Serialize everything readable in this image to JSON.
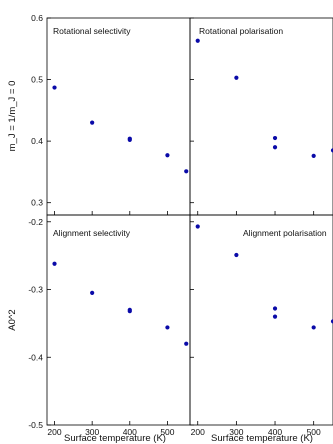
{
  "chart_data": [
    {
      "type": "scatter",
      "title": "Rotational selectivity",
      "xlabel": "",
      "ylabel": "m_J = 1/m_J = 0",
      "xlim": [
        180,
        560
      ],
      "ylim": [
        0.28,
        0.6
      ],
      "yticks": [
        0.3,
        0.4,
        0.5,
        0.6
      ],
      "xticks": [
        200,
        300,
        400,
        500
      ],
      "points": [
        {
          "x": 200,
          "y": 0.487
        },
        {
          "x": 300,
          "y": 0.43
        },
        {
          "x": 400,
          "y": 0.404
        },
        {
          "x": 400,
          "y": 0.402
        },
        {
          "x": 500,
          "y": 0.377
        },
        {
          "x": 550,
          "y": 0.351
        }
      ]
    },
    {
      "type": "scatter",
      "title": "Rotational polarisation",
      "xlabel": "",
      "ylabel": "",
      "xlim": [
        180,
        550
      ],
      "ylim": [
        0.28,
        0.6
      ],
      "yticks": [
        0.3,
        0.4,
        0.5,
        0.6
      ],
      "xticks": [
        200,
        300,
        400,
        500
      ],
      "points": [
        {
          "x": 200,
          "y": 0.563
        },
        {
          "x": 300,
          "y": 0.503
        },
        {
          "x": 400,
          "y": 0.405
        },
        {
          "x": 400,
          "y": 0.39
        },
        {
          "x": 500,
          "y": 0.376
        },
        {
          "x": 550,
          "y": 0.385
        }
      ]
    },
    {
      "type": "scatter",
      "title": "Alignment selectivity",
      "xlabel": "Surface temperature (K)",
      "ylabel": "A0^2",
      "xlim": [
        180,
        560
      ],
      "ylim": [
        -0.5,
        -0.19
      ],
      "yticks": [
        -0.5,
        -0.4,
        -0.3,
        -0.2
      ],
      "xticks": [
        200,
        300,
        400,
        500
      ],
      "points": [
        {
          "x": 200,
          "y": -0.262
        },
        {
          "x": 300,
          "y": -0.305
        },
        {
          "x": 400,
          "y": -0.33
        },
        {
          "x": 400,
          "y": -0.332
        },
        {
          "x": 500,
          "y": -0.356
        },
        {
          "x": 550,
          "y": -0.38
        }
      ]
    },
    {
      "type": "scatter",
      "title": "Alignment polarisation",
      "xlabel": "Surface temperature (K)",
      "ylabel": "",
      "xlim": [
        180,
        550
      ],
      "ylim": [
        -0.5,
        -0.19
      ],
      "yticks": [
        -0.5,
        -0.4,
        -0.3,
        -0.2
      ],
      "xticks": [
        200,
        300,
        400,
        500
      ],
      "points": [
        {
          "x": 200,
          "y": -0.207
        },
        {
          "x": 300,
          "y": -0.249
        },
        {
          "x": 400,
          "y": -0.328
        },
        {
          "x": 400,
          "y": -0.34
        },
        {
          "x": 500,
          "y": -0.356
        },
        {
          "x": 550,
          "y": -0.347
        }
      ]
    }
  ],
  "colors": {
    "marker": "#0a0aa8",
    "axis": "#000000"
  }
}
